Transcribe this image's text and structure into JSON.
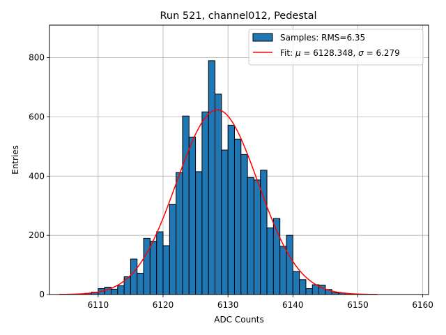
{
  "chart_data": {
    "type": "bar",
    "title": "Run 521, channel012, Pedestal",
    "xlabel": "ADC Counts",
    "ylabel": "Entries",
    "xlim": [
      6102.5,
      6160.9
    ],
    "ylim": [
      0,
      910
    ],
    "xticks": [
      6110,
      6120,
      6130,
      6140,
      6150,
      6160
    ],
    "yticks": [
      0,
      200,
      400,
      600,
      800
    ],
    "grid": true,
    "legend_position": "top-right",
    "bin_width": 1,
    "series": [
      {
        "name": "Samples: RMS=6.35",
        "kind": "histogram",
        "color": "#1f77b4",
        "edge_color": "#000000",
        "bin_lefts": [
          6108,
          6109,
          6110,
          6111,
          6112,
          6113,
          6114,
          6115,
          6116,
          6117,
          6118,
          6119,
          6120,
          6121,
          6122,
          6123,
          6124,
          6125,
          6126,
          6127,
          6128,
          6129,
          6130,
          6131,
          6132,
          6133,
          6134,
          6135,
          6136,
          6137,
          6138,
          6139,
          6140,
          6141,
          6142,
          6143,
          6144,
          6145,
          6146,
          6147,
          6148,
          6149,
          6150,
          6151
        ],
        "values": [
          4,
          8,
          20,
          25,
          18,
          30,
          60,
          120,
          72,
          190,
          180,
          212,
          165,
          305,
          412,
          603,
          532,
          415,
          617,
          790,
          677,
          488,
          572,
          525,
          473,
          395,
          387,
          420,
          225,
          257,
          163,
          200,
          78,
          50,
          20,
          33,
          32,
          17,
          6,
          5,
          3,
          2,
          1,
          1
        ]
      },
      {
        "name_prefix": "Fit: ",
        "mu_symbol": "μ",
        "mu_text": " = 6128.348, ",
        "sigma_symbol": "σ",
        "sigma_text": " = 6.279",
        "kind": "gaussian",
        "color": "#ff0000",
        "mu": 6128.348,
        "sigma": 6.279,
        "amplitude": 624,
        "x_range": [
          6104,
          6153
        ]
      }
    ]
  }
}
